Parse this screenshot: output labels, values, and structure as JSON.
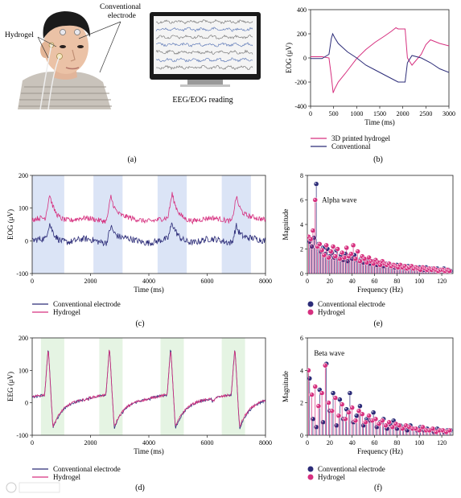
{
  "panel_a": {
    "hydrogel_label": "Hydrogel",
    "conventional_label": "Conventional electrode",
    "monitor_caption": "EEG/EOG reading",
    "letter": "(a)"
  },
  "colors": {
    "pink": "#d6307f",
    "navy": "#2c2c78",
    "blue_band": "#dbe4f6",
    "green_band": "#e5f4e3"
  },
  "chart_data": [
    {
      "id": "b",
      "type": "line",
      "letter": "(b)",
      "xlabel": "Time (ms)",
      "ylabel": "EOG (μV)",
      "xlim": [
        0,
        3000
      ],
      "ylim": [
        -400,
        400
      ],
      "xticks": [
        0,
        500,
        1000,
        1500,
        2000,
        2500,
        3000
      ],
      "yticks": [
        -400,
        -200,
        0,
        200,
        400
      ],
      "legend": "below",
      "series": [
        {
          "name": "3D printed hydrogel",
          "color": "#d6307f",
          "x": [
            0,
            250,
            400,
            450,
            490,
            520,
            600,
            750,
            1000,
            1200,
            1400,
            1600,
            1750,
            1850,
            1900,
            2050,
            2100,
            2200,
            2400,
            2500,
            2600,
            2800,
            3000
          ],
          "y": [
            10,
            10,
            0,
            -150,
            -290,
            -260,
            -200,
            -130,
            -5,
            70,
            130,
            180,
            220,
            250,
            240,
            240,
            0,
            -60,
            30,
            110,
            150,
            120,
            100
          ]
        },
        {
          "name": "Conventional",
          "color": "#2c2c78",
          "x": [
            0,
            250,
            400,
            450,
            480,
            520,
            600,
            800,
            1000,
            1200,
            1400,
            1600,
            1800,
            1900,
            2050,
            2100,
            2200,
            2400,
            2600,
            2800,
            3000
          ],
          "y": [
            -5,
            -5,
            30,
            160,
            200,
            170,
            120,
            50,
            0,
            -60,
            -100,
            -140,
            -180,
            -200,
            -200,
            -40,
            20,
            0,
            -40,
            -90,
            -120
          ]
        }
      ]
    },
    {
      "id": "c",
      "type": "line",
      "letter": "(c)",
      "xlabel": "Time (ms)",
      "ylabel": "EOG (μV)",
      "xlim": [
        0,
        8000
      ],
      "ylim": [
        -100,
        200
      ],
      "xticks": [
        0,
        2000,
        4000,
        6000,
        8000
      ],
      "yticks": [
        -100,
        0,
        100,
        200
      ],
      "shaded_intervals": [
        [
          0,
          1100
        ],
        [
          2100,
          3100
        ],
        [
          4300,
          5300
        ],
        [
          6500,
          7500
        ]
      ],
      "legend": "below",
      "series": [
        {
          "name": "Conventional electrode",
          "color": "#2c2c78",
          "baseline": 0,
          "spike_times": [
            600,
            2700,
            4800,
            7000
          ],
          "spike_height": 50,
          "noise": 10
        },
        {
          "name": "Hydrogel",
          "color": "#d6307f",
          "baseline": 65,
          "spike_times": [
            600,
            2700,
            4800,
            7000
          ],
          "spike_height": 75,
          "noise": 8
        }
      ]
    },
    {
      "id": "d",
      "type": "line",
      "letter": "(d)",
      "xlabel": "Time (ms)",
      "ylabel": "EEG (μV)",
      "xlim": [
        0,
        8000
      ],
      "ylim": [
        -100,
        200
      ],
      "xticks": [
        0,
        2000,
        4000,
        6000,
        8000
      ],
      "yticks": [
        -100,
        0,
        100,
        200
      ],
      "shaded_intervals": [
        [
          300,
          1100
        ],
        [
          2300,
          3100
        ],
        [
          4400,
          5200
        ],
        [
          6500,
          7300
        ]
      ],
      "legend": "below",
      "series": [
        {
          "name": "Conventional electrode",
          "color": "#2c2c78",
          "peak_times": [
            550,
            2650,
            4750,
            6950
          ],
          "peak": 170,
          "trough": -85,
          "noise": 4
        },
        {
          "name": "Hydrogel",
          "color": "#d6307f",
          "peak_times": [
            550,
            2650,
            4750,
            6950
          ],
          "peak": 165,
          "trough": -80,
          "noise": 4
        }
      ]
    },
    {
      "id": "e",
      "type": "scatter",
      "letter": "(e)",
      "xlabel": "Frequency (Hz)",
      "ylabel": "Magnitude",
      "xlim": [
        0,
        130
      ],
      "ylim": [
        0,
        8
      ],
      "xticks": [
        0,
        20,
        40,
        60,
        80,
        100,
        120
      ],
      "yticks": [
        0,
        2,
        4,
        6,
        8
      ],
      "annotation": "Alpha wave",
      "legend": "below",
      "series": [
        {
          "name": "Conventional electrode",
          "color": "#2c2c78",
          "x": [
            2,
            4,
            6,
            8,
            10,
            12,
            14,
            16,
            18,
            20,
            22,
            24,
            26,
            28,
            30,
            32,
            34,
            36,
            38,
            40,
            42,
            44,
            46,
            48,
            50,
            52,
            54,
            56,
            58,
            60,
            62,
            64,
            66,
            68,
            70,
            72,
            74,
            76,
            78,
            80,
            82,
            84,
            86,
            88,
            90,
            92,
            94,
            96,
            98,
            100,
            102,
            104,
            106,
            108,
            110,
            112,
            114,
            116,
            118,
            120,
            122,
            124,
            126,
            128
          ],
          "y": [
            2.6,
            2.2,
            2.9,
            7.3,
            2.4,
            1.8,
            2.1,
            1.6,
            2.0,
            1.4,
            1.7,
            1.3,
            1.9,
            1.2,
            1.5,
            1.1,
            1.6,
            1.0,
            1.3,
            1.2,
            1.5,
            1.1,
            1.0,
            1.2,
            0.9,
            1.1,
            1.0,
            0.8,
            1.0,
            0.9,
            0.7,
            0.9,
            0.8,
            0.6,
            0.8,
            0.7,
            0.6,
            0.7,
            0.5,
            0.7,
            0.6,
            0.5,
            0.6,
            0.4,
            0.6,
            0.5,
            0.4,
            0.5,
            0.4,
            0.5,
            0.4,
            0.3,
            0.5,
            0.4,
            0.3,
            0.4,
            0.3,
            0.4,
            0.3,
            0.3,
            0.4,
            0.3,
            0.3,
            0.2
          ]
        },
        {
          "name": "Hydrogel",
          "color": "#d6307f",
          "x": [
            1,
            3,
            5,
            7,
            9,
            11,
            13,
            15,
            17,
            19,
            21,
            23,
            25,
            27,
            29,
            31,
            33,
            35,
            37,
            39,
            41,
            43,
            45,
            47,
            49,
            51,
            53,
            55,
            57,
            59,
            61,
            63,
            65,
            67,
            69,
            71,
            73,
            75,
            77,
            79,
            81,
            83,
            85,
            87,
            89,
            91,
            93,
            95,
            97,
            99,
            101,
            103,
            105,
            107,
            109,
            111,
            113,
            115,
            117,
            119,
            121,
            123,
            125,
            127
          ],
          "y": [
            3.0,
            2.8,
            3.5,
            6.0,
            2.2,
            2.4,
            1.9,
            1.5,
            2.3,
            1.3,
            1.8,
            2.2,
            1.4,
            2.0,
            1.2,
            1.7,
            1.3,
            2.1,
            1.4,
            1.6,
            2.3,
            1.2,
            1.8,
            1.0,
            1.4,
            1.2,
            0.9,
            1.3,
            1.0,
            0.8,
            1.1,
            0.9,
            0.7,
            1.0,
            0.8,
            0.7,
            0.8,
            0.6,
            0.7,
            0.6,
            0.5,
            0.7,
            0.5,
            0.6,
            0.4,
            0.5,
            0.6,
            0.4,
            0.5,
            0.4,
            0.3,
            0.5,
            0.4,
            0.3,
            0.4,
            0.3,
            0.4,
            0.3,
            0.2,
            0.3,
            0.3,
            0.2,
            0.3,
            0.2
          ]
        }
      ]
    },
    {
      "id": "f",
      "type": "scatter",
      "letter": "(f)",
      "xlabel": "Frequency (Hz)",
      "ylabel": "Magnitude",
      "xlim": [
        0,
        130
      ],
      "ylim": [
        0,
        6
      ],
      "xticks": [
        0,
        20,
        40,
        60,
        80,
        100,
        120
      ],
      "yticks": [
        0,
        2,
        4,
        6
      ],
      "annotation": "Beta wave",
      "legend": "below",
      "series": [
        {
          "name": "Conventional electrode",
          "color": "#2c2c78",
          "x": [
            2,
            5,
            8,
            11,
            14,
            17,
            20,
            23,
            26,
            29,
            32,
            35,
            38,
            41,
            44,
            47,
            50,
            53,
            56,
            59,
            62,
            65,
            68,
            71,
            74,
            77,
            80,
            83,
            86,
            89,
            92,
            95,
            98,
            101,
            104,
            107,
            110,
            113,
            116,
            119,
            122,
            125,
            128
          ],
          "y": [
            3.5,
            1.0,
            0.5,
            2.8,
            0.8,
            4.4,
            1.5,
            2.6,
            0.6,
            2.2,
            1.0,
            1.6,
            2.6,
            0.8,
            1.2,
            1.8,
            0.6,
            1.0,
            0.9,
            1.4,
            0.5,
            0.8,
            1.0,
            0.4,
            0.7,
            0.9,
            0.4,
            0.6,
            0.5,
            0.3,
            0.6,
            0.4,
            0.3,
            0.5,
            0.3,
            0.4,
            0.3,
            0.2,
            0.4,
            0.3,
            0.2,
            0.3,
            0.3
          ]
        },
        {
          "name": "Hydrogel",
          "color": "#d6307f",
          "x": [
            1,
            4,
            7,
            10,
            13,
            16,
            19,
            22,
            25,
            28,
            31,
            34,
            37,
            40,
            43,
            46,
            49,
            52,
            55,
            58,
            61,
            64,
            67,
            70,
            73,
            76,
            79,
            82,
            85,
            88,
            91,
            94,
            97,
            100,
            103,
            106,
            109,
            112,
            115,
            118,
            121,
            124,
            127
          ],
          "y": [
            4.0,
            2.5,
            3.0,
            1.8,
            2.6,
            4.3,
            2.0,
            1.5,
            2.3,
            1.2,
            1.9,
            1.0,
            1.4,
            1.7,
            0.9,
            1.5,
            1.3,
            0.8,
            1.2,
            0.9,
            1.0,
            0.7,
            0.9,
            0.6,
            0.8,
            0.5,
            0.7,
            0.6,
            0.4,
            0.6,
            0.5,
            0.4,
            0.4,
            0.3,
            0.5,
            0.3,
            0.3,
            0.4,
            0.2,
            0.3,
            0.3,
            0.2,
            0.3
          ]
        }
      ]
    }
  ]
}
